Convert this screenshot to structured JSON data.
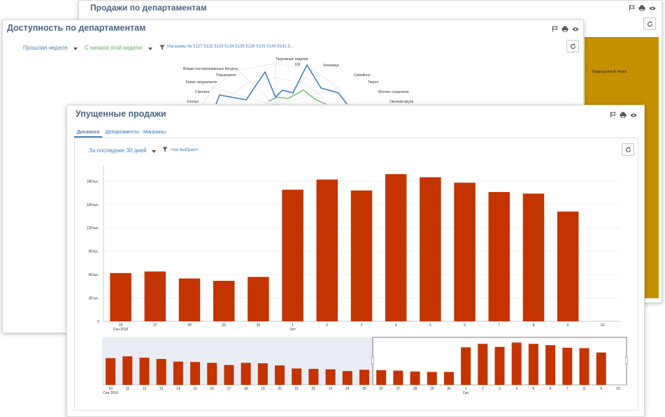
{
  "back_panel": {
    "title": "Продажи по департаментам",
    "bar_label": "Традиционный творог"
  },
  "middle_panel": {
    "title": "Доступность по департаментам",
    "period_filter": "Прошлая неделя",
    "compare_filter": "С начала этой недели",
    "stores_filter": "Магазины № 5127 5132 5133 5134 5135 5138 5139 5140 5141 5...",
    "radar": {
      "max_label": "100",
      "labels": [
        "Творожные изделия",
        "Чечевица",
        "Семейное",
        "Творог",
        "Молоко сгущенное",
        "Овсяная крупа",
        "Хлопья",
        "Сметана",
        "Какао натуральное",
        "Порционное",
        "Вязкие пастеризованные йогурты"
      ]
    }
  },
  "front_panel": {
    "title": "Упущенные продажи",
    "tabs": [
      "Динамика",
      "Департаменты",
      "Магазины"
    ],
    "active_tab": 0,
    "period_filter": "За последние 30 дней",
    "filter_value": "<не выбран>"
  },
  "colors": {
    "bar": "#c43400",
    "title": "#4a6784",
    "link": "#3f7fbf",
    "back_bar": "#c49000"
  },
  "chart_data": [
    {
      "type": "bar",
      "title": "",
      "xlabel": "",
      "ylabel": "",
      "categories": [
        "26",
        "27",
        "28",
        "29",
        "30",
        "1",
        "2",
        "3",
        "4",
        "5",
        "6",
        "7",
        "8",
        "9",
        "10"
      ],
      "month_labels": [
        {
          "at": "26",
          "text": "Сен 2016"
        },
        {
          "at": "1",
          "text": "Окт"
        }
      ],
      "values": [
        62,
        64,
        55,
        52,
        57,
        169,
        182,
        168,
        189,
        185,
        178,
        166,
        164,
        141,
        0
      ],
      "yticks": [
        0,
        30,
        60,
        90,
        120,
        150,
        180
      ],
      "ytick_labels": [
        "0",
        "30тыс.",
        "60тыс.",
        "90тыс.",
        "120тыс.",
        "150тыс.",
        "180тыс."
      ],
      "ylim": [
        0,
        200
      ],
      "grid": true
    },
    {
      "type": "bar",
      "title": "",
      "categories": [
        "10",
        "11",
        "12",
        "13",
        "14",
        "15",
        "16",
        "17",
        "18",
        "19",
        "20",
        "21",
        "22",
        "23",
        "24",
        "25",
        "26",
        "27",
        "28",
        "29",
        "30",
        "1",
        "2",
        "3",
        "4",
        "5",
        "6",
        "7",
        "8",
        "9",
        "10"
      ],
      "month_labels": [
        {
          "at": "10",
          "text": "Сен 2016"
        },
        {
          "at": "1",
          "text": "Окт"
        }
      ],
      "values": [
        62,
        66,
        63,
        60,
        54,
        53,
        51,
        46,
        51,
        50,
        45,
        38,
        37,
        36,
        32,
        35,
        34,
        33,
        31,
        30,
        30,
        87,
        95,
        88,
        98,
        95,
        92,
        86,
        85,
        75,
        0
      ],
      "ylim": [
        0,
        110
      ],
      "selection_range": [
        "26",
        "10"
      ]
    }
  ]
}
